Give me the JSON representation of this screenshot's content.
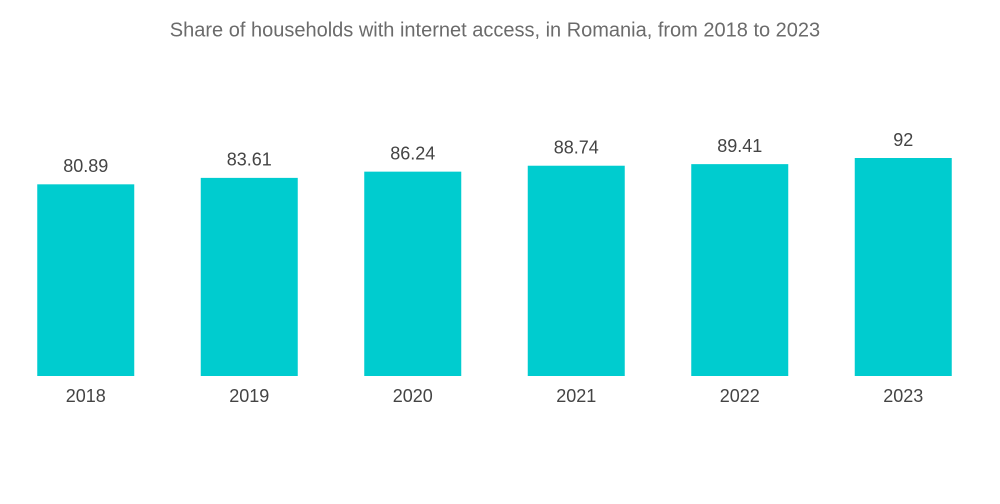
{
  "chart_data": {
    "type": "bar",
    "title": "Share of households with internet access, in Romania, from 2018 to 2023",
    "categories": [
      "2018",
      "2019",
      "2020",
      "2021",
      "2022",
      "2023"
    ],
    "values": [
      80.89,
      83.61,
      86.24,
      88.74,
      89.41,
      92
    ],
    "color": "#00cccf"
  }
}
